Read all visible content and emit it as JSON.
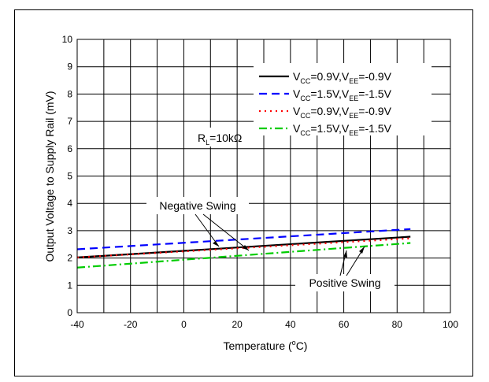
{
  "chart_data": {
    "type": "line",
    "xlabel": "Temperature (°C)",
    "xlabel_parts": {
      "before": "Temperature (",
      "sup": "o",
      "after": "C)"
    },
    "ylabel": "Output Voltage to Supply Rail (mV)",
    "xlim": [
      -40,
      100
    ],
    "ylim": [
      0,
      10
    ],
    "xticks": [
      -40,
      -20,
      0,
      20,
      40,
      60,
      80,
      100
    ],
    "yticks": [
      0,
      1,
      2,
      3,
      4,
      5,
      6,
      7,
      8,
      9,
      10
    ],
    "grid": true,
    "legend_position": "top-right",
    "series": [
      {
        "name": "VCC=0.9V,VEE=-0.9V",
        "label": {
          "a": "V",
          "sub1": "CC",
          "b": "=0.9V,V",
          "sub2": "EE",
          "c": "=-0.9V"
        },
        "color": "#000000",
        "dash": "solid",
        "x": [
          -40,
          85
        ],
        "y": [
          2.02,
          2.78
        ]
      },
      {
        "name": "VCC=1.5V,VEE=-1.5V",
        "label": {
          "a": "V",
          "sub1": "CC",
          "b": "=1.5V,V",
          "sub2": "EE",
          "c": "=-1.5V"
        },
        "color": "#0000ff",
        "dash": "dash",
        "x": [
          -40,
          85
        ],
        "y": [
          2.32,
          3.06
        ]
      },
      {
        "name": "VCC=0.9V,VEE=-0.9V",
        "label": {
          "a": "V",
          "sub1": "CC",
          "b": "=0.9V,V",
          "sub2": "EE",
          "c": "=-0.9V"
        },
        "color": "#ff0000",
        "dash": "dot",
        "x": [
          -40,
          85
        ],
        "y": [
          2.02,
          2.72
        ]
      },
      {
        "name": "VCC=1.5V,VEE=-1.5V",
        "label": {
          "a": "V",
          "sub1": "CC",
          "b": "=1.5V,V",
          "sub2": "EE",
          "c": "=-1.5V"
        },
        "color": "#00cc00",
        "dash": "dashdot",
        "x": [
          -40,
          85
        ],
        "y": [
          1.65,
          2.55
        ]
      }
    ],
    "annotations": {
      "rl": {
        "a": "R",
        "sub": "L",
        "b": "=10kΩ"
      },
      "negative": "Negative Swing",
      "positive": "Positive Swing"
    }
  }
}
